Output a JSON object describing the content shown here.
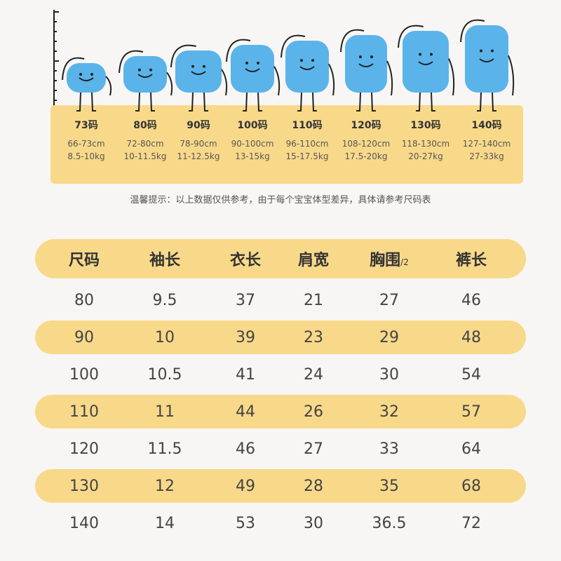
{
  "size_chart": {
    "sizes": [
      {
        "name": "73码",
        "height": "66-73cm",
        "weight": "8.5-10kg"
      },
      {
        "name": "80码",
        "height": "72-80cm",
        "weight": "10-11.5kg"
      },
      {
        "name": "90码",
        "height": "78-90cm",
        "weight": "11-12.5kg"
      },
      {
        "name": "100码",
        "height": "90-100cm",
        "weight": "13-15kg"
      },
      {
        "name": "110码",
        "height": "96-110cm",
        "weight": "15-17.5kg"
      },
      {
        "name": "120码",
        "height": "108-120cm",
        "weight": "17.5-20kg"
      },
      {
        "name": "130码",
        "height": "118-130cm",
        "weight": "20-27kg"
      },
      {
        "name": "140码",
        "height": "127-140cm",
        "weight": "27-33kg"
      }
    ],
    "tip": "温馨提示：以上数据仅供参考，由于每个宝宝体型差异，具体请参考尺码表",
    "colors": {
      "band": "#f8d98a",
      "figure": "#5ab4ea",
      "outline": "#222222"
    }
  },
  "measure_table": {
    "headers": [
      "尺码",
      "袖长",
      "衣长",
      "肩宽",
      "胸围",
      "裤长"
    ],
    "chest_suffix": "/2",
    "rows": [
      [
        "80",
        "9.5",
        "37",
        "21",
        "27",
        "46"
      ],
      [
        "90",
        "10",
        "39",
        "23",
        "29",
        "48"
      ],
      [
        "100",
        "10.5",
        "41",
        "24",
        "30",
        "54"
      ],
      [
        "110",
        "11",
        "44",
        "26",
        "32",
        "57"
      ],
      [
        "120",
        "11.5",
        "46",
        "27",
        "33",
        "64"
      ],
      [
        "130",
        "12",
        "49",
        "28",
        "35",
        "68"
      ],
      [
        "140",
        "14",
        "53",
        "30",
        "36.5",
        "72"
      ]
    ],
    "stripe_color": "#f8d98a"
  }
}
